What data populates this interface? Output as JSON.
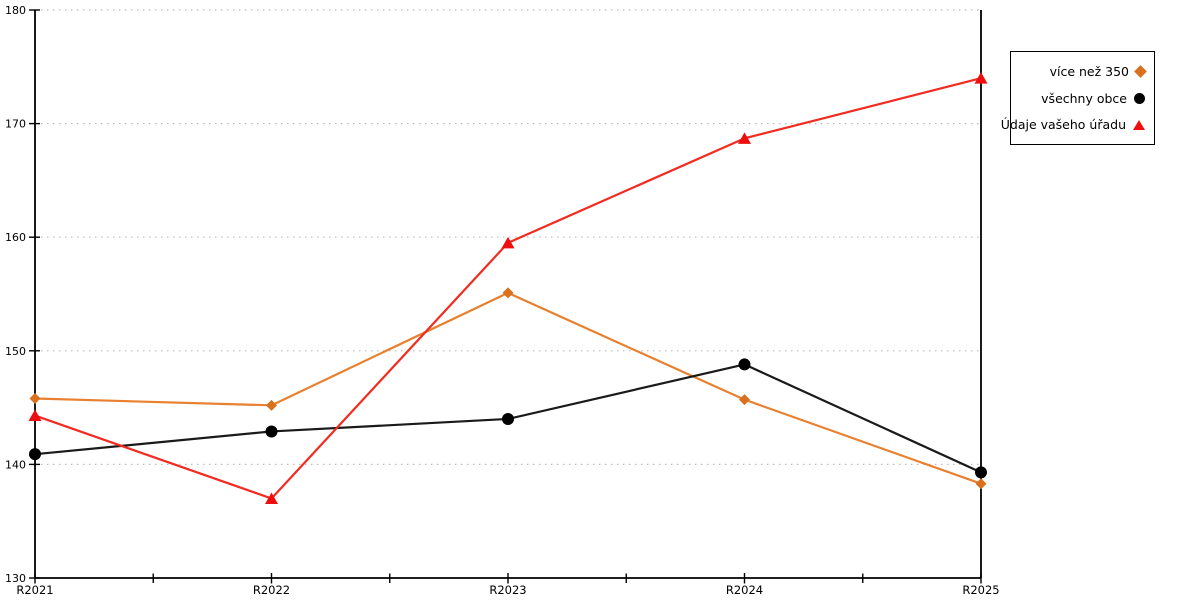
{
  "chart_data": {
    "type": "line",
    "title": "",
    "xlabel": "",
    "ylabel": "",
    "x": [
      "R2021",
      "R2022",
      "R2023",
      "R2024",
      "R2025"
    ],
    "series": [
      {
        "name": "více než 350",
        "marker": "diamond",
        "line_color": "#e8802f",
        "marker_color": "#d8701e",
        "values": [
          145.8,
          145.2,
          155.1,
          145.7,
          138.3
        ]
      },
      {
        "name": "všechny obce",
        "marker": "circle",
        "line_color": "#1a1a1a",
        "marker_color": "#000000",
        "values": [
          140.9,
          142.9,
          144.0,
          148.8,
          139.3
        ]
      },
      {
        "name": "Údaje vašeho úřadu",
        "marker": "triangle",
        "line_color": "#f22b20",
        "marker_color": "#ee0e0e",
        "values": [
          144.3,
          137.0,
          159.5,
          168.7,
          174.0
        ]
      }
    ],
    "ylim": [
      130,
      180
    ],
    "yticks": [
      130,
      140,
      150,
      160,
      170,
      180
    ],
    "grid": "dotted horizontal gridlines at 140-180",
    "grid_color": "#bbbbbb",
    "axis_color": "#000000",
    "legend_position": "outside-right-top",
    "legend_marker_side": "right"
  }
}
